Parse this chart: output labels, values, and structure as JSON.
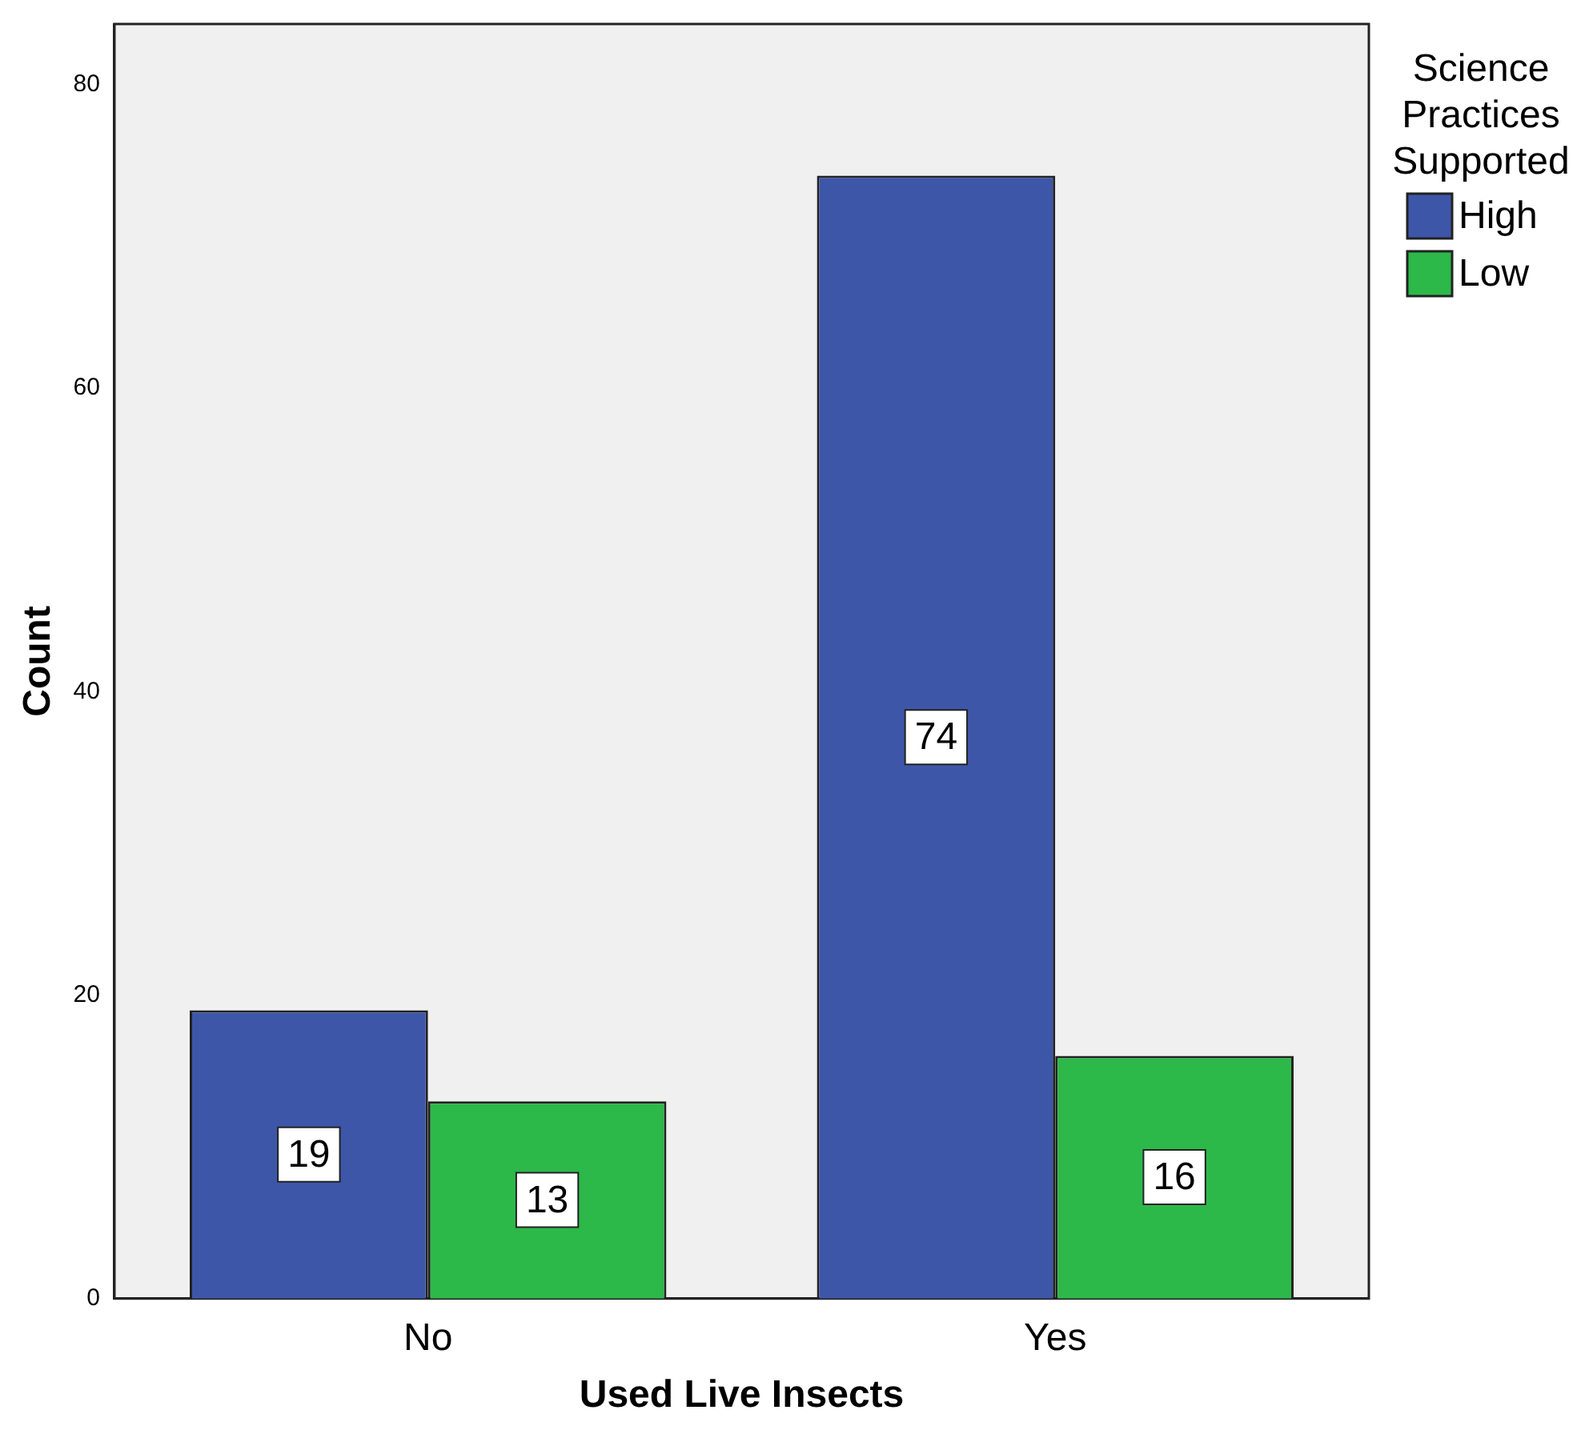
{
  "chart_data": {
    "type": "bar",
    "xlabel": "Used Live Insects",
    "ylabel": "Count",
    "legend_title": "Science Practices Supported",
    "categories": [
      "No",
      "Yes"
    ],
    "series": [
      {
        "name": "High",
        "color": "#3d56a8",
        "values": [
          19,
          74
        ]
      },
      {
        "name": "Low",
        "color": "#2db84a",
        "values": [
          13,
          16
        ]
      }
    ],
    "ylim": [
      0,
      84
    ],
    "yticks": [
      0,
      20,
      40,
      60,
      80
    ],
    "grid": false,
    "legend": "right",
    "data_labels": true
  }
}
